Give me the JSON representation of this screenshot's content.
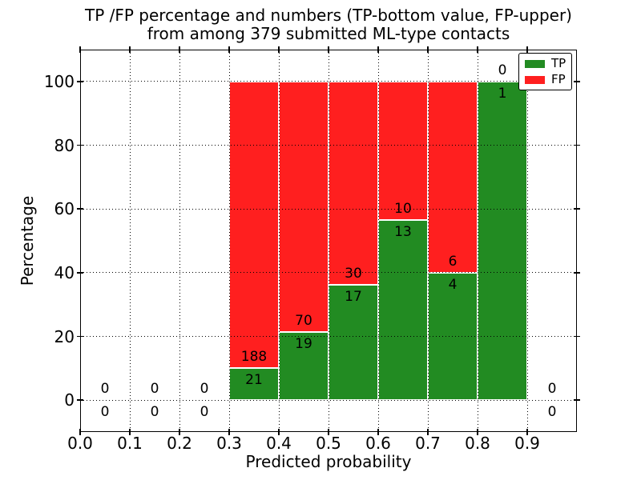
{
  "title": {
    "line1": "TP /FP percentage and numbers (TP-bottom value, FP-upper)",
    "line2": "from among 379 submitted ML-type contacts"
  },
  "axes": {
    "xlabel": "Predicted probability",
    "ylabel": "Percentage",
    "x_tick_labels": [
      "0.0",
      "0.1",
      "0.2",
      "0.3",
      "0.4",
      "0.5",
      "0.6",
      "0.7",
      "0.8",
      "0.9"
    ],
    "y_tick_labels": [
      "0",
      "20",
      "40",
      "60",
      "80",
      "100"
    ]
  },
  "legend": {
    "items": [
      {
        "label": "TP",
        "color": "#228B22"
      },
      {
        "label": "FP",
        "color": "#FF1F1F"
      }
    ]
  },
  "colors": {
    "tp": "#228B22",
    "fp": "#FF1F1F",
    "grid": "#000000",
    "background": "#FFFFFF"
  },
  "chart_data": {
    "type": "bar",
    "stacked": true,
    "title": "TP /FP percentage and numbers (TP-bottom value, FP-upper) from among 379 submitted ML-type contacts",
    "xlabel": "Predicted probability",
    "ylabel": "Percentage",
    "xlim": [
      0.0,
      1.0
    ],
    "ylim": [
      -10,
      110
    ],
    "grid": true,
    "legend_position": "upper right",
    "total_submitted": 379,
    "bin_width": 0.1,
    "bins": [
      {
        "x_start": 0.0,
        "x_end": 0.1,
        "tp": 0,
        "fp": 0,
        "tp_pct": 0,
        "fp_pct": 0
      },
      {
        "x_start": 0.1,
        "x_end": 0.2,
        "tp": 0,
        "fp": 0,
        "tp_pct": 0,
        "fp_pct": 0
      },
      {
        "x_start": 0.2,
        "x_end": 0.3,
        "tp": 0,
        "fp": 0,
        "tp_pct": 0,
        "fp_pct": 0
      },
      {
        "x_start": 0.3,
        "x_end": 0.4,
        "tp": 21,
        "fp": 188,
        "tp_pct": 10.05,
        "fp_pct": 89.95
      },
      {
        "x_start": 0.4,
        "x_end": 0.5,
        "tp": 19,
        "fp": 70,
        "tp_pct": 21.35,
        "fp_pct": 78.65
      },
      {
        "x_start": 0.5,
        "x_end": 0.6,
        "tp": 17,
        "fp": 30,
        "tp_pct": 36.17,
        "fp_pct": 63.83
      },
      {
        "x_start": 0.6,
        "x_end": 0.7,
        "tp": 13,
        "fp": 10,
        "tp_pct": 56.52,
        "fp_pct": 43.48
      },
      {
        "x_start": 0.7,
        "x_end": 0.8,
        "tp": 4,
        "fp": 6,
        "tp_pct": 40.0,
        "fp_pct": 60.0
      },
      {
        "x_start": 0.8,
        "x_end": 0.9,
        "tp": 1,
        "fp": 0,
        "tp_pct": 100.0,
        "fp_pct": 0.0
      },
      {
        "x_start": 0.9,
        "x_end": 1.0,
        "tp": 0,
        "fp": 0,
        "tp_pct": 0,
        "fp_pct": 0
      }
    ],
    "series": [
      {
        "name": "TP",
        "color": "#228B22",
        "values_pct": [
          0,
          0,
          0,
          10.05,
          21.35,
          36.17,
          56.52,
          40.0,
          100.0,
          0
        ]
      },
      {
        "name": "FP",
        "color": "#FF1F1F",
        "values_pct": [
          0,
          0,
          0,
          89.95,
          78.65,
          63.83,
          43.48,
          60.0,
          0.0,
          0
        ]
      }
    ]
  }
}
